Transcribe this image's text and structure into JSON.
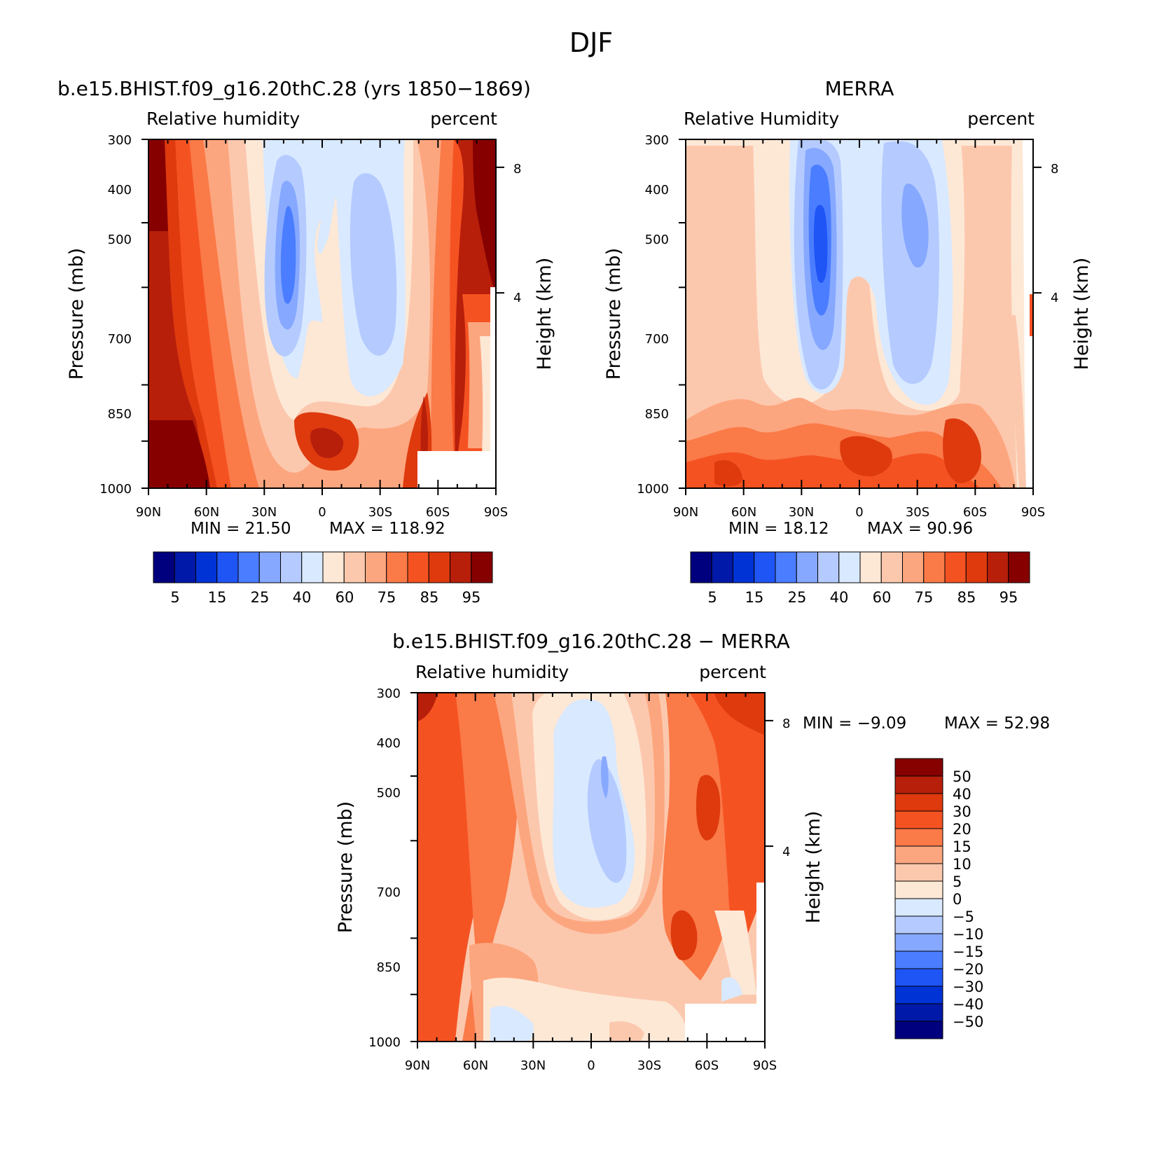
{
  "figure": {
    "title": "DJF"
  },
  "chart_data": [
    {
      "type": "heatmap",
      "panel_title": "b.e15.BHIST.f09_g16.20thC.28 (yrs 1850-1869)",
      "left_label": "Relative humidity",
      "right_label": "percent",
      "ylabel": "Pressure (mb)",
      "y2label": "Height (km)",
      "x_ticks": [
        "90N",
        "60N",
        "30N",
        "0",
        "30S",
        "60S",
        "90S"
      ],
      "y_ticks": [
        "300",
        "400",
        "500",
        "700",
        "850",
        "1000"
      ],
      "y2_ticks": [
        "8",
        "4"
      ],
      "min_text": "MIN =   21.50",
      "max_text": "MAX =  118.92",
      "colorbar_labels": [
        "5",
        "15",
        "25",
        "40",
        "60",
        "75",
        "85",
        "95"
      ],
      "grid": false
    },
    {
      "type": "heatmap",
      "panel_title": "MERRA",
      "left_label": "Relative Humidity",
      "right_label": "percent",
      "ylabel": "Pressure (mb)",
      "y2label": "Height (km)",
      "x_ticks": [
        "90N",
        "60N",
        "30N",
        "0",
        "30S",
        "60S",
        "90S"
      ],
      "y_ticks": [
        "300",
        "400",
        "500",
        "700",
        "850",
        "1000"
      ],
      "y2_ticks": [
        "8",
        "4"
      ],
      "min_text": "MIN =   18.12",
      "max_text": "MAX =   90.96",
      "colorbar_labels": [
        "5",
        "15",
        "25",
        "40",
        "60",
        "75",
        "85",
        "95"
      ],
      "grid": false
    },
    {
      "type": "heatmap",
      "panel_title": "b.e15.BHIST.f09_g16.20thC.28 - MERRA",
      "left_label": "Relative humidity",
      "right_label": "percent",
      "ylabel": "Pressure (mb)",
      "y2label": "Height (km)",
      "x_ticks": [
        "90N",
        "60N",
        "30N",
        "0",
        "30S",
        "60S",
        "90S"
      ],
      "y_ticks": [
        "300",
        "400",
        "500",
        "700",
        "850",
        "1000"
      ],
      "y2_ticks": [
        "8",
        "4"
      ],
      "min_text": "MIN =   -9.09",
      "max_text": "MAX =   52.98",
      "colorbar_labels": [
        "50",
        "40",
        "30",
        "20",
        "15",
        "10",
        "5",
        "0",
        "-5",
        "-10",
        "-15",
        "-20",
        "-30",
        "-40",
        "-50"
      ],
      "grid": false
    }
  ],
  "colors": {
    "rh_palette": [
      "#00007f",
      "#0019a8",
      "#0033d6",
      "#1f55f5",
      "#4a7dff",
      "#86a8ff",
      "#b5cbff",
      "#d9e9ff",
      "#fde8d6",
      "#fcc8ad",
      "#fca67f",
      "#fa7a48",
      "#f55222",
      "#de3a0e",
      "#b71f0b",
      "#860000"
    ],
    "diff_palette": [
      "#860000",
      "#b71f0b",
      "#de3a0e",
      "#f55222",
      "#fa7a48",
      "#fca67f",
      "#fcc8ad",
      "#fde8d6",
      "#d9e9ff",
      "#b5cbff",
      "#86a8ff",
      "#4a7dff",
      "#1f55f5",
      "#0033d6",
      "#0019a8",
      "#00007f"
    ]
  }
}
